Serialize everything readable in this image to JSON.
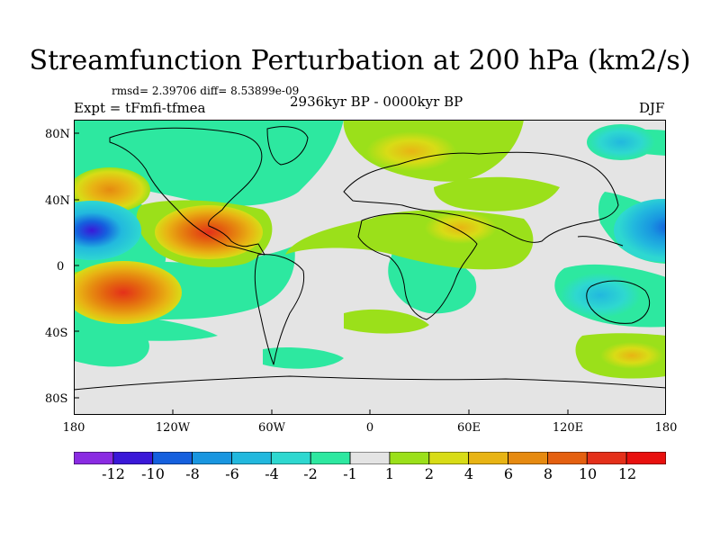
{
  "title": "Streamfunction Perturbation at 200 hPa (km2/s)",
  "stats_line": "rmsd= 2.39706 diff= 8.53899e-09",
  "experiment": "Expt = tFmfi-tfmea",
  "period": "2936kyr BP - 0000kyr BP",
  "season": "DJF",
  "lat_labels": [
    "80N",
    "40N",
    "0",
    "40S",
    "80S"
  ],
  "lon_labels": [
    "180",
    "120W",
    "60W",
    "0",
    "60E",
    "120E",
    "180"
  ],
  "colorbar": {
    "labels": [
      "-12",
      "-10",
      "-8",
      "-6",
      "-4",
      "-2",
      "-1",
      "1",
      "2",
      "4",
      "6",
      "8",
      "10",
      "12"
    ],
    "colors": [
      "#8a2be2",
      "#3a18d8",
      "#1560de",
      "#1996e0",
      "#22b8de",
      "#2ed8d0",
      "#2de8a0",
      "#e4e4e4",
      "#9be01a",
      "#d8dc16",
      "#e8b414",
      "#e68a10",
      "#e46010",
      "#e4301a",
      "#e8100e"
    ]
  }
}
